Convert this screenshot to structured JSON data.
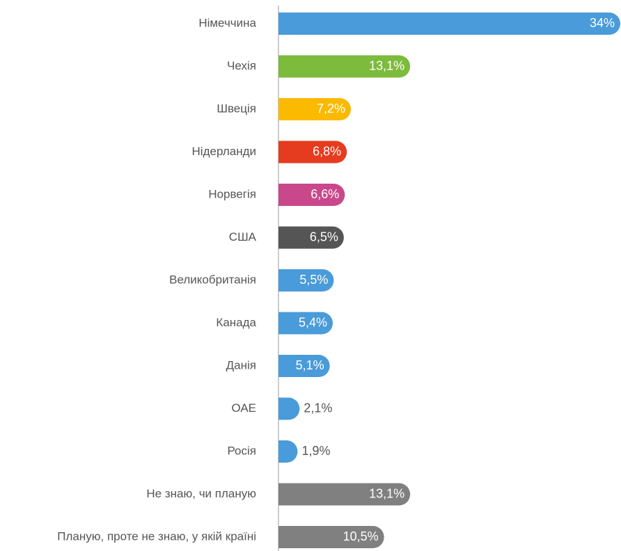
{
  "chart_data": {
    "type": "bar",
    "orientation": "horizontal",
    "categories": [
      "Німеччина",
      "Чехія",
      "Швеція",
      "Нідерланди",
      "Норвегія",
      "США",
      "Великобританія",
      "Канада",
      "Данія",
      "ОАЕ",
      "Росія",
      "Не знаю, чи планую",
      "Планую, проте не знаю, у якій країні"
    ],
    "values": [
      34,
      13.1,
      7.2,
      6.8,
      6.6,
      6.5,
      5.5,
      5.4,
      5.1,
      2.1,
      1.9,
      13.1,
      10.5
    ],
    "value_labels": [
      "34%",
      "13,1%",
      "7,2%",
      "6,8%",
      "6,6%",
      "6,5%",
      "5,5%",
      "5,4%",
      "5,1%",
      "2,1%",
      "1,9%",
      "13,1%",
      "10,5%"
    ],
    "colors": [
      "#4a9bd9",
      "#7dbb3c",
      "#fbb900",
      "#e53b1f",
      "#c8488b",
      "#555555",
      "#4a9bd9",
      "#4a9bd9",
      "#4a9bd9",
      "#4a9bd9",
      "#4a9bd9",
      "#808080",
      "#808080"
    ]
  }
}
